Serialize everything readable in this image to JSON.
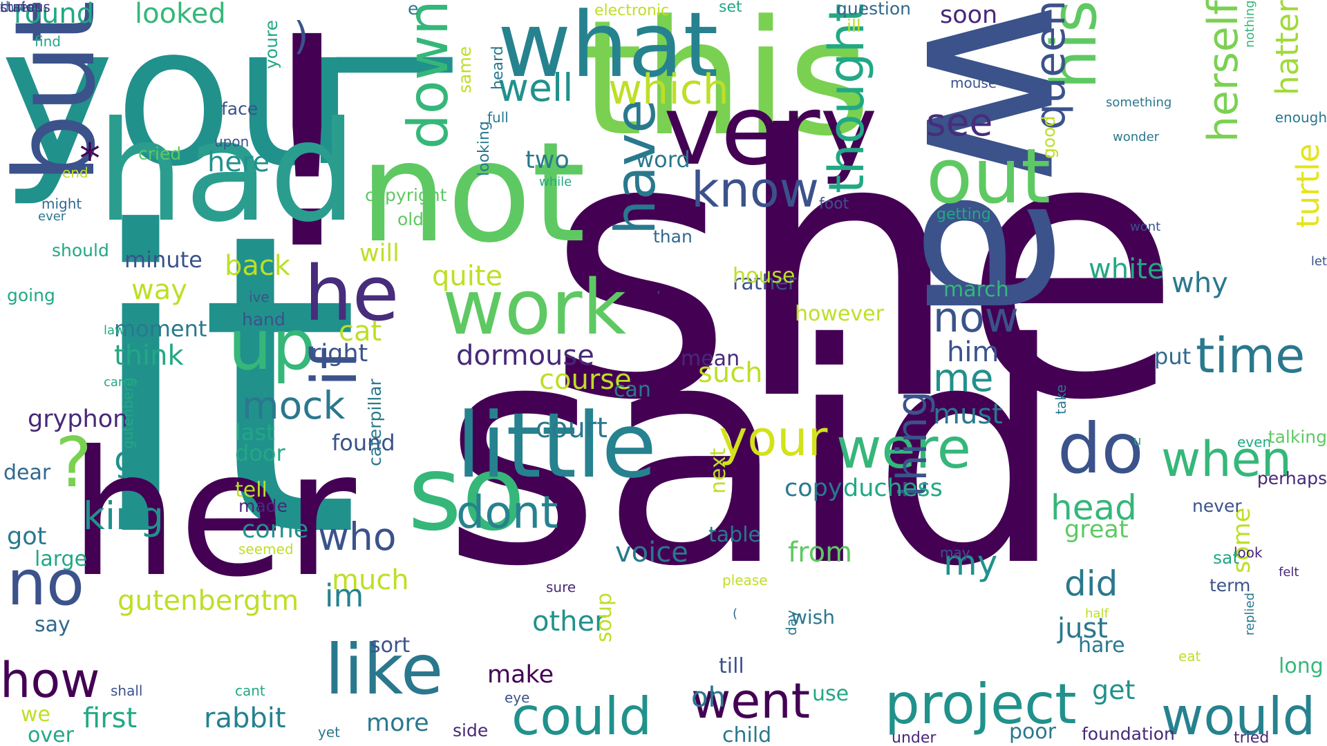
{
  "colors": {
    "background": "#ffffff",
    "palette": [
      "#440154",
      "#3b528b",
      "#21918c",
      "#5ec962",
      "#fde725"
    ]
  },
  "words": [
    {
      "text": "she",
      "color": "#440154",
      "rotate": 0
    },
    {
      "text": "said",
      "color": "#440154",
      "rotate": 0
    },
    {
      "text": "it",
      "color": "#21918c",
      "rotate": 0
    },
    {
      "text": "you",
      "color": "#21918c",
      "rotate": 0
    },
    {
      "text": "!",
      "color": "#440154",
      "rotate": 0
    },
    {
      "text": "I",
      "color": "#21918c",
      "rotate": 90
    },
    {
      "text": "this",
      "color": "#7ad151",
      "rotate": 0
    },
    {
      "text": "wa",
      "color": "#3b528b",
      "rotate": 90
    },
    {
      "text": "her",
      "color": "#440154",
      "rotate": 0
    },
    {
      "text": "had",
      "color": "#2a9d8f",
      "rotate": 0
    },
    {
      "text": "not",
      "color": "#5ec962",
      "rotate": 0
    },
    {
      "text": "very",
      "color": "#440154",
      "rotate": 0
    },
    {
      "text": "what",
      "color": "#26828e",
      "rotate": 0
    },
    {
      "text": "but",
      "color": "#3b528b",
      "rotate": 270
    },
    {
      "text": "so",
      "color": "#35b779",
      "rotate": 0
    },
    {
      "text": "little",
      "color": "#26828e",
      "rotate": 0
    },
    {
      "text": "work",
      "color": "#5ec962",
      "rotate": 0
    },
    {
      "text": "out",
      "color": "#5ec962",
      "rotate": 0
    },
    {
      "text": "no",
      "color": "#3b528b",
      "rotate": 0
    },
    {
      "text": "up",
      "color": "#35b779",
      "rotate": 0
    },
    {
      "text": "he",
      "color": "#472d7b",
      "rotate": 0
    },
    {
      "text": "do",
      "color": "#3b528b",
      "rotate": 0
    },
    {
      "text": "down",
      "color": "#35b779",
      "rotate": 270
    },
    {
      "text": "if",
      "color": "#3b528b",
      "rotate": 270
    },
    {
      "text": "like",
      "color": "#2a788e",
      "rotate": 0
    },
    {
      "text": "know",
      "color": "#3b528b",
      "rotate": 0
    },
    {
      "text": "have",
      "color": "#2a788e",
      "rotate": 270
    },
    {
      "text": "his",
      "color": "#5ec962",
      "rotate": 270
    },
    {
      "text": "were",
      "color": "#35b779",
      "rotate": 0
    },
    {
      "text": "your",
      "color": "#d2e21b",
      "rotate": 0
    },
    {
      "text": "?",
      "color": "#7ad151",
      "rotate": 0
    },
    {
      "text": "project",
      "color": "#21918c",
      "rotate": 0
    },
    {
      "text": "went",
      "color": "#440154",
      "rotate": 0
    },
    {
      "text": "could",
      "color": "#21918c",
      "rotate": 0
    },
    {
      "text": "how",
      "color": "#440154",
      "rotate": 0
    },
    {
      "text": "dont",
      "color": "#26828e",
      "rotate": 0
    },
    {
      "text": "thought",
      "color": "#22a884",
      "rotate": 270
    },
    {
      "text": "thing",
      "color": "#3b528b",
      "rotate": 270
    },
    {
      "text": "when",
      "color": "#35b779",
      "rotate": 0
    },
    {
      "text": "would",
      "color": "#26828e",
      "rotate": 0
    },
    {
      "text": "time",
      "color": "#2a788e",
      "rotate": 0
    },
    {
      "text": "herself",
      "color": "#7ad151",
      "rotate": 270
    },
    {
      "text": "queen",
      "color": "#3b528b",
      "rotate": 270
    },
    {
      "text": "well",
      "color": "#21918c",
      "rotate": 0
    },
    {
      "text": "which",
      "color": "#bddf26",
      "rotate": 0
    },
    {
      "text": "see",
      "color": "#472d7b",
      "rotate": 0
    },
    {
      "text": "now",
      "color": "#3b528b",
      "rotate": 0
    },
    {
      "text": "me",
      "color": "#21918c",
      "rotate": 0
    },
    {
      "text": "who",
      "color": "#3b528b",
      "rotate": 0
    },
    {
      "text": "mock",
      "color": "#2a788e",
      "rotate": 0
    },
    {
      "text": "king",
      "color": "#21918c",
      "rotate": 0
    },
    {
      "text": "go",
      "color": "#21918c",
      "rotate": 0
    },
    {
      "text": "head",
      "color": "#35b779",
      "rotate": 0
    },
    {
      "text": "my",
      "color": "#21918c",
      "rotate": 0
    },
    {
      "text": "did",
      "color": "#2a788e",
      "rotate": 0
    },
    {
      "text": "hatter",
      "color": "#a0da39",
      "rotate": 270
    },
    {
      "text": "turtle",
      "color": "#e5e419",
      "rotate": 270
    },
    {
      "text": "im",
      "color": "#26828e",
      "rotate": 0
    },
    {
      "text": "voice",
      "color": "#2a788e",
      "rotate": 0
    },
    {
      "text": "first",
      "color": "#22a884",
      "rotate": 0
    },
    {
      "text": "rabbit",
      "color": "#26828e",
      "rotate": 0
    },
    {
      "text": "gutenbergtm",
      "color": "#bddf26",
      "rotate": 0
    },
    {
      "text": "make",
      "color": "#440154",
      "rotate": 0
    },
    {
      "text": "other",
      "color": "#21918c",
      "rotate": 0
    },
    {
      "text": "get",
      "color": "#21918c",
      "rotate": 0
    },
    {
      "text": "just",
      "color": "#2a788e",
      "rotate": 0
    },
    {
      "text": "some",
      "color": "#bddf26",
      "rotate": 270
    },
    {
      "text": "such",
      "color": "#bddf26",
      "rotate": 0
    },
    {
      "text": "dormouse",
      "color": "#482878",
      "rotate": 0
    },
    {
      "text": "quite",
      "color": "#bddf26",
      "rotate": 0
    },
    {
      "text": "duchess",
      "color": "#22a884",
      "rotate": 0
    },
    {
      "text": "great",
      "color": "#5ec962",
      "rotate": 0
    },
    {
      "text": "from",
      "color": "#5ec962",
      "rotate": 0
    },
    {
      "text": "must",
      "color": "#2a788e",
      "rotate": 0
    },
    {
      "text": "him",
      "color": "#3b528b",
      "rotate": 0
    },
    {
      "text": "why",
      "color": "#2a788e",
      "rotate": 0
    },
    {
      "text": "put",
      "color": "#31688e",
      "rotate": 0
    },
    {
      "text": "two",
      "color": "#2a788e",
      "rotate": 0
    },
    {
      "text": "word",
      "color": "#2a788e",
      "rotate": 0
    },
    {
      "text": "round",
      "color": "#22a884",
      "rotate": 0
    },
    {
      "text": "looked",
      "color": "#35b779",
      "rotate": 0
    },
    {
      "text": ")",
      "color": "#3b528b",
      "rotate": 0
    },
    {
      "text": "*",
      "color": "#440154",
      "rotate": 0
    },
    {
      "text": "here",
      "color": "#21918c",
      "rotate": 0
    },
    {
      "text": "back",
      "color": "#bddf26",
      "rotate": 0
    },
    {
      "text": "way",
      "color": "#bddf26",
      "rotate": 0
    },
    {
      "text": "minute",
      "color": "#3b528b",
      "rotate": 0
    },
    {
      "text": "moment",
      "color": "#2a788e",
      "rotate": 0
    },
    {
      "text": "think",
      "color": "#22a884",
      "rotate": 0
    },
    {
      "text": "right",
      "color": "#3b528b",
      "rotate": 0
    },
    {
      "text": "cat",
      "color": "#bddf26",
      "rotate": 0
    },
    {
      "text": "will",
      "color": "#bddf26",
      "rotate": 0
    },
    {
      "text": "gryphon",
      "color": "#482878",
      "rotate": 0
    },
    {
      "text": "last",
      "color": "#22a884",
      "rotate": 0
    },
    {
      "text": "door",
      "color": "#22a884",
      "rotate": 0
    },
    {
      "text": "found",
      "color": "#3b528b",
      "rotate": 0
    },
    {
      "text": "tell",
      "color": "#bddf26",
      "rotate": 0
    },
    {
      "text": "made",
      "color": "#482878",
      "rotate": 0
    },
    {
      "text": "come",
      "color": "#21918c",
      "rotate": 0
    },
    {
      "text": "much",
      "color": "#bddf26",
      "rotate": 0
    },
    {
      "text": "more",
      "color": "#2a788e",
      "rotate": 0
    },
    {
      "text": "got",
      "color": "#2a788e",
      "rotate": 0
    },
    {
      "text": "large",
      "color": "#22a884",
      "rotate": 0
    },
    {
      "text": "say",
      "color": "#31688e",
      "rotate": 0
    },
    {
      "text": "we",
      "color": "#bddf26",
      "rotate": 0
    },
    {
      "text": "over",
      "color": "#22a884",
      "rotate": 0
    },
    {
      "text": "dear",
      "color": "#31688e",
      "rotate": 0
    },
    {
      "text": "should",
      "color": "#22a884",
      "rotate": 0
    },
    {
      "text": "going",
      "color": "#22a884",
      "rotate": 0
    },
    {
      "text": "might",
      "color": "#31688e",
      "rotate": 0
    },
    {
      "text": "ever",
      "color": "#2a788e",
      "rotate": 0
    },
    {
      "text": "end",
      "color": "#bddf26",
      "rotate": 0
    },
    {
      "text": "find",
      "color": "#22a884",
      "rotate": 0
    },
    {
      "text": "cried",
      "color": "#5ec962",
      "rotate": 0
    },
    {
      "text": "upon",
      "color": "#3b528b",
      "rotate": 0
    },
    {
      "text": "face",
      "color": "#3b528b",
      "rotate": 0
    },
    {
      "text": "youre",
      "color": "#22a884",
      "rotate": 270
    },
    {
      "text": "same",
      "color": "#bddf26",
      "rotate": 270
    },
    {
      "text": "heard",
      "color": "#2a788e",
      "rotate": 270
    },
    {
      "text": "full",
      "color": "#2a788e",
      "rotate": 0
    },
    {
      "text": "e",
      "color": "#2a788e",
      "rotate": 0
    },
    {
      "text": "electronic",
      "color": "#bddf26",
      "rotate": 0
    },
    {
      "text": "set",
      "color": "#22a884",
      "rotate": 0
    },
    {
      "text": "question",
      "color": "#31688e",
      "rotate": 0
    },
    {
      "text": "ill",
      "color": "#bddf26",
      "rotate": 0
    },
    {
      "text": "soon",
      "color": "#482878",
      "rotate": 0
    },
    {
      "text": "mouse",
      "color": "#3b528b",
      "rotate": 0
    },
    {
      "text": "good",
      "color": "#bddf26",
      "rotate": 270
    },
    {
      "text": "nothing",
      "color": "#35b779",
      "rotate": 270
    },
    {
      "text": "something",
      "color": "#2a788e",
      "rotate": 0
    },
    {
      "text": "wonder",
      "color": "#2a788e",
      "rotate": 0
    },
    {
      "text": "enough",
      "color": "#2a788e",
      "rotate": 0
    },
    {
      "text": "looking",
      "color": "#2a788e",
      "rotate": 270
    },
    {
      "text": "while",
      "color": "#22a884",
      "rotate": 0
    },
    {
      "text": "copyright",
      "color": "#5ec962",
      "rotate": 0
    },
    {
      "text": "foot",
      "color": "#3b528b",
      "rotate": 0
    },
    {
      "text": "getting",
      "color": "#22a884",
      "rotate": 0
    },
    {
      "text": "wont",
      "color": "#3b528b",
      "rotate": 0
    },
    {
      "text": "let",
      "color": "#3b528b",
      "rotate": 0
    },
    {
      "text": "old",
      "color": "#5ec962",
      "rotate": 0
    },
    {
      "text": "than",
      "color": "#31688e",
      "rotate": 0
    },
    {
      "text": "rather",
      "color": "#3b528b",
      "rotate": 0
    },
    {
      "text": "house",
      "color": "#bddf26",
      "rotate": 0
    },
    {
      "text": "however",
      "color": "#bddf26",
      "rotate": 0
    },
    {
      "text": "march",
      "color": "#35b779",
      "rotate": 0
    },
    {
      "text": "‘",
      "color": "#3b528b",
      "rotate": 0
    },
    {
      "text": "ive",
      "color": "#3b528b",
      "rotate": 0
    },
    {
      "text": "hand",
      "color": "#3b528b",
      "rotate": 0
    },
    {
      "text": "law",
      "color": "#22a884",
      "rotate": 0
    },
    {
      "text": "mean",
      "color": "#482878",
      "rotate": 0
    },
    {
      "text": "course",
      "color": "#bddf26",
      "rotate": 0
    },
    {
      "text": "court",
      "color": "#2a788e",
      "rotate": 0
    },
    {
      "text": "white",
      "color": "#22a884",
      "rotate": 0
    },
    {
      "text": "can",
      "color": "#2a788e",
      "rotate": 0
    },
    {
      "text": "came",
      "color": "#22a884",
      "rotate": 0
    },
    {
      "text": "gutenberg",
      "color": "#22a884",
      "rotate": 270
    },
    {
      "text": "take",
      "color": "#2a788e",
      "rotate": 270
    },
    {
      "text": "u",
      "color": "#22a884",
      "rotate": 0
    },
    {
      "text": "even",
      "color": "#22a884",
      "rotate": 0
    },
    {
      "text": "perhaps",
      "color": "#482878",
      "rotate": 0
    },
    {
      "text": "talking",
      "color": "#5ec962",
      "rotate": 0
    },
    {
      "text": "copy",
      "color": "#2a788e",
      "rotate": 0
    },
    {
      "text": "caterpillar",
      "color": "#2a788e",
      "rotate": 270
    },
    {
      "text": "next",
      "color": "#bddf26",
      "rotate": 270
    },
    {
      "text": "never",
      "color": "#3b528b",
      "rotate": 0
    },
    {
      "text": "may",
      "color": "#3b528b",
      "rotate": 0
    },
    {
      "text": "look",
      "color": "#482878",
      "rotate": 0
    },
    {
      "text": "table",
      "color": "#2a788e",
      "rotate": 0
    },
    {
      "text": "seemed",
      "color": "#bddf26",
      "rotate": 0
    },
    {
      "text": "sure",
      "color": "#482878",
      "rotate": 0
    },
    {
      "text": "term",
      "color": "#3b528b",
      "rotate": 0
    },
    {
      "text": "sat",
      "color": "#22a884",
      "rotate": 0
    },
    {
      "text": "felt",
      "color": "#482878",
      "rotate": 0
    },
    {
      "text": "please",
      "color": "#bddf26",
      "rotate": 0
    },
    {
      "text": "day",
      "color": "#2a788e",
      "rotate": 270
    },
    {
      "text": "(",
      "color": "#31688e",
      "rotate": 0
    },
    {
      "text": "wish",
      "color": "#2a788e",
      "rotate": 0
    },
    {
      "text": "replied",
      "color": "#2a788e",
      "rotate": 270
    },
    {
      "text": "eat",
      "color": "#bddf26",
      "rotate": 0
    },
    {
      "text": "half",
      "color": "#bddf26",
      "rotate": 0
    },
    {
      "text": "hare",
      "color": "#2a788e",
      "rotate": 0
    },
    {
      "text": "long",
      "color": "#35b779",
      "rotate": 0
    },
    {
      "text": "sort",
      "color": "#3b528b",
      "rotate": 0
    },
    {
      "text": "soup",
      "color": "#bddf26",
      "rotate": 270
    },
    {
      "text": "till",
      "color": "#3b528b",
      "rotate": 0
    },
    {
      "text": "oh",
      "color": "#2a788e",
      "rotate": 0
    },
    {
      "text": "use",
      "color": "#22a884",
      "rotate": 0
    },
    {
      "text": "shall",
      "color": "#3b528b",
      "rotate": 0
    },
    {
      "text": "cant",
      "color": "#22a884",
      "rotate": 0
    },
    {
      "text": "eye",
      "color": "#3b528b",
      "rotate": 0
    },
    {
      "text": "yet",
      "color": "#2a788e",
      "rotate": 0
    },
    {
      "text": "side",
      "color": "#482878",
      "rotate": 0
    },
    {
      "text": "child",
      "color": "#2a788e",
      "rotate": 0
    },
    {
      "text": "under",
      "color": "#482878",
      "rotate": 0
    },
    {
      "text": "poor",
      "color": "#2a788e",
      "rotate": 0
    },
    {
      "text": "foundation",
      "color": "#482878",
      "rotate": 0
    },
    {
      "text": "tried",
      "color": "#482878",
      "rotate": 0
    },
    {
      "text": "three",
      "color": "#2a788e",
      "rotate": 0
    },
    {
      "text": "state",
      "color": "#3b528b",
      "rotate": 0
    },
    {
      "text": "curious",
      "color": "#482878",
      "rotate": 0
    }
  ]
}
